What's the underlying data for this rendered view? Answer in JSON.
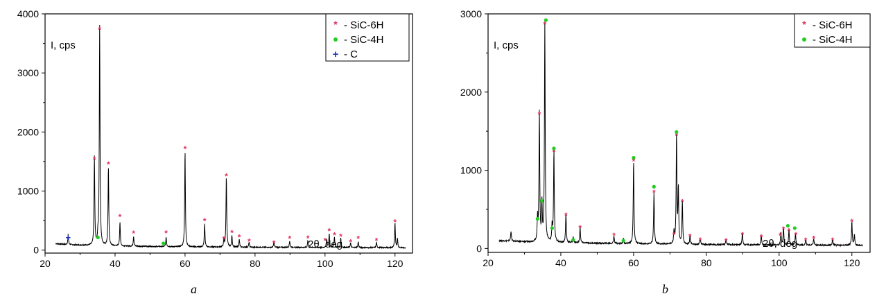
{
  "chart_data": [
    {
      "type": "line",
      "panel_label": "a",
      "ylabel": "I, cps",
      "xlabel": "2θ, deg",
      "xlim": [
        20,
        125
      ],
      "ylim": [
        -50,
        4000
      ],
      "xticks": [
        20,
        40,
        60,
        80,
        100,
        120
      ],
      "yticks": [
        0,
        1000,
        2000,
        3000,
        4000
      ],
      "color": "#000000",
      "legend": [
        {
          "marker": "*",
          "label": "- SiC-6H",
          "color": "#e0305a"
        },
        {
          "marker": "●",
          "label": "- SiC-4H",
          "color": "#22cc22"
        },
        {
          "marker": "+",
          "label": "- C",
          "color": "#1f2fbf"
        }
      ],
      "baseline": [
        [
          23,
          110
        ],
        [
          26,
          95
        ],
        [
          30,
          85
        ],
        [
          40,
          70
        ],
        [
          60,
          55
        ],
        [
          80,
          48
        ],
        [
          100,
          45
        ],
        [
          123,
          40
        ]
      ],
      "peaks": [
        {
          "x": 26.6,
          "y": 170
        },
        {
          "x": 34.1,
          "y": 1500
        },
        {
          "x": 35.1,
          "y": 150
        },
        {
          "x": 35.6,
          "y": 3720
        },
        {
          "x": 38.1,
          "y": 1330
        },
        {
          "x": 41.4,
          "y": 400
        },
        {
          "x": 45.3,
          "y": 170
        },
        {
          "x": 54.6,
          "y": 160
        },
        {
          "x": 60.0,
          "y": 1630
        },
        {
          "x": 65.6,
          "y": 400
        },
        {
          "x": 71.1,
          "y": 110
        },
        {
          "x": 71.8,
          "y": 1200
        },
        {
          "x": 73.4,
          "y": 200
        },
        {
          "x": 75.5,
          "y": 130
        },
        {
          "x": 78.3,
          "y": 90
        },
        {
          "x": 85.4,
          "y": 90
        },
        {
          "x": 89.9,
          "y": 110
        },
        {
          "x": 95.1,
          "y": 120
        },
        {
          "x": 100.5,
          "y": 140
        },
        {
          "x": 101.2,
          "y": 230
        },
        {
          "x": 102.7,
          "y": 180
        },
        {
          "x": 104.5,
          "y": 160
        },
        {
          "x": 107.3,
          "y": 80
        },
        {
          "x": 109.5,
          "y": 100
        },
        {
          "x": 114.7,
          "y": 90
        },
        {
          "x": 120.0,
          "y": 420
        },
        {
          "x": 120.7,
          "y": 150
        }
      ],
      "markers": [
        {
          "x": 26.6,
          "y": 210,
          "kind": "plus"
        },
        {
          "x": 34.1,
          "y": 1540,
          "kind": "star"
        },
        {
          "x": 35.1,
          "y": 215,
          "kind": "dot"
        },
        {
          "x": 35.6,
          "y": 3740,
          "kind": "star"
        },
        {
          "x": 38.1,
          "y": 1460,
          "kind": "star"
        },
        {
          "x": 41.4,
          "y": 575,
          "kind": "star"
        },
        {
          "x": 45.3,
          "y": 290,
          "kind": "star"
        },
        {
          "x": 53.8,
          "y": 115,
          "kind": "dot"
        },
        {
          "x": 54.6,
          "y": 295,
          "kind": "star"
        },
        {
          "x": 60.0,
          "y": 1720,
          "kind": "star"
        },
        {
          "x": 65.6,
          "y": 500,
          "kind": "star"
        },
        {
          "x": 71.1,
          "y": 195,
          "kind": "star"
        },
        {
          "x": 71.8,
          "y": 1260,
          "kind": "star"
        },
        {
          "x": 73.4,
          "y": 305,
          "kind": "star"
        },
        {
          "x": 75.5,
          "y": 225,
          "kind": "star"
        },
        {
          "x": 78.3,
          "y": 155,
          "kind": "star"
        },
        {
          "x": 85.4,
          "y": 125,
          "kind": "star"
        },
        {
          "x": 89.9,
          "y": 205,
          "kind": "star"
        },
        {
          "x": 95.1,
          "y": 210,
          "kind": "star"
        },
        {
          "x": 100.0,
          "y": 165,
          "kind": "star"
        },
        {
          "x": 101.2,
          "y": 330,
          "kind": "star"
        },
        {
          "x": 102.7,
          "y": 260,
          "kind": "star"
        },
        {
          "x": 104.5,
          "y": 240,
          "kind": "star"
        },
        {
          "x": 107.3,
          "y": 145,
          "kind": "star"
        },
        {
          "x": 109.5,
          "y": 205,
          "kind": "star"
        },
        {
          "x": 114.7,
          "y": 165,
          "kind": "star"
        },
        {
          "x": 120.0,
          "y": 485,
          "kind": "star"
        }
      ]
    },
    {
      "type": "line",
      "panel_label": "b",
      "ylabel": "I, cps",
      "xlabel": "2θ, deg",
      "xlim": [
        20,
        125
      ],
      "ylim": [
        -50,
        3000
      ],
      "xticks": [
        20,
        40,
        60,
        80,
        100,
        120
      ],
      "yticks": [
        0,
        1000,
        2000,
        3000
      ],
      "color": "#000000",
      "legend": [
        {
          "marker": "*",
          "label": "- SiC-6H",
          "color": "#e0305a"
        },
        {
          "marker": "●",
          "label": "- SiC-4H",
          "color": "#22cc22"
        }
      ],
      "baseline": [
        [
          23,
          100
        ],
        [
          26,
          95
        ],
        [
          30,
          85
        ],
        [
          40,
          75
        ],
        [
          60,
          60
        ],
        [
          80,
          50
        ],
        [
          100,
          45
        ],
        [
          123,
          40
        ]
      ],
      "peaks": [
        {
          "x": 26.3,
          "y": 130
        },
        {
          "x": 33.6,
          "y": 300
        },
        {
          "x": 34.1,
          "y": 1650
        },
        {
          "x": 34.8,
          "y": 480
        },
        {
          "x": 35.6,
          "y": 2820
        },
        {
          "x": 37.6,
          "y": 200
        },
        {
          "x": 38.1,
          "y": 1170
        },
        {
          "x": 41.4,
          "y": 370
        },
        {
          "x": 43.4,
          "y": 80
        },
        {
          "x": 45.3,
          "y": 200
        },
        {
          "x": 54.6,
          "y": 100
        },
        {
          "x": 57.2,
          "y": 70
        },
        {
          "x": 60.0,
          "y": 1060
        },
        {
          "x": 65.6,
          "y": 660
        },
        {
          "x": 71.1,
          "y": 160
        },
        {
          "x": 71.8,
          "y": 1400
        },
        {
          "x": 72.3,
          "y": 700
        },
        {
          "x": 73.4,
          "y": 550
        },
        {
          "x": 75.5,
          "y": 110
        },
        {
          "x": 78.3,
          "y": 80
        },
        {
          "x": 85.4,
          "y": 80
        },
        {
          "x": 89.9,
          "y": 160
        },
        {
          "x": 95.1,
          "y": 130
        },
        {
          "x": 100.5,
          "y": 160
        },
        {
          "x": 101.2,
          "y": 230
        },
        {
          "x": 102.7,
          "y": 200
        },
        {
          "x": 104.5,
          "y": 140
        },
        {
          "x": 107.3,
          "y": 70
        },
        {
          "x": 109.5,
          "y": 80
        },
        {
          "x": 114.7,
          "y": 80
        },
        {
          "x": 120.0,
          "y": 300
        },
        {
          "x": 120.7,
          "y": 140
        }
      ],
      "markers": [
        {
          "x": 33.6,
          "y": 380,
          "kind": "dot"
        },
        {
          "x": 34.1,
          "y": 1720,
          "kind": "star"
        },
        {
          "x": 34.8,
          "y": 610,
          "kind": "dot"
        },
        {
          "x": 35.6,
          "y": 2870,
          "kind": "star"
        },
        {
          "x": 35.9,
          "y": 2920,
          "kind": "dot"
        },
        {
          "x": 37.6,
          "y": 260,
          "kind": "dot"
        },
        {
          "x": 38.1,
          "y": 1240,
          "kind": "star"
        },
        {
          "x": 38.1,
          "y": 1280,
          "kind": "dot"
        },
        {
          "x": 41.4,
          "y": 430,
          "kind": "star"
        },
        {
          "x": 43.4,
          "y": 110,
          "kind": "dot"
        },
        {
          "x": 45.3,
          "y": 270,
          "kind": "star"
        },
        {
          "x": 54.6,
          "y": 170,
          "kind": "star"
        },
        {
          "x": 57.2,
          "y": 100,
          "kind": "dot"
        },
        {
          "x": 60.0,
          "y": 1120,
          "kind": "star"
        },
        {
          "x": 60.0,
          "y": 1160,
          "kind": "dot"
        },
        {
          "x": 65.6,
          "y": 720,
          "kind": "star"
        },
        {
          "x": 65.6,
          "y": 790,
          "kind": "dot"
        },
        {
          "x": 71.1,
          "y": 180,
          "kind": "star"
        },
        {
          "x": 71.8,
          "y": 1450,
          "kind": "star"
        },
        {
          "x": 71.8,
          "y": 1490,
          "kind": "dot"
        },
        {
          "x": 73.4,
          "y": 600,
          "kind": "star"
        },
        {
          "x": 75.5,
          "y": 160,
          "kind": "star"
        },
        {
          "x": 78.3,
          "y": 110,
          "kind": "star"
        },
        {
          "x": 85.4,
          "y": 100,
          "kind": "star"
        },
        {
          "x": 89.9,
          "y": 180,
          "kind": "star"
        },
        {
          "x": 95.1,
          "y": 150,
          "kind": "star"
        },
        {
          "x": 100.3,
          "y": 170,
          "kind": "star"
        },
        {
          "x": 101.2,
          "y": 250,
          "kind": "star"
        },
        {
          "x": 102.4,
          "y": 290,
          "kind": "dot"
        },
        {
          "x": 102.7,
          "y": 230,
          "kind": "star"
        },
        {
          "x": 104.3,
          "y": 260,
          "kind": "dot"
        },
        {
          "x": 104.6,
          "y": 180,
          "kind": "star"
        },
        {
          "x": 107.3,
          "y": 110,
          "kind": "star"
        },
        {
          "x": 109.5,
          "y": 130,
          "kind": "star"
        },
        {
          "x": 114.7,
          "y": 110,
          "kind": "star"
        },
        {
          "x": 120.0,
          "y": 350,
          "kind": "star"
        }
      ]
    }
  ]
}
